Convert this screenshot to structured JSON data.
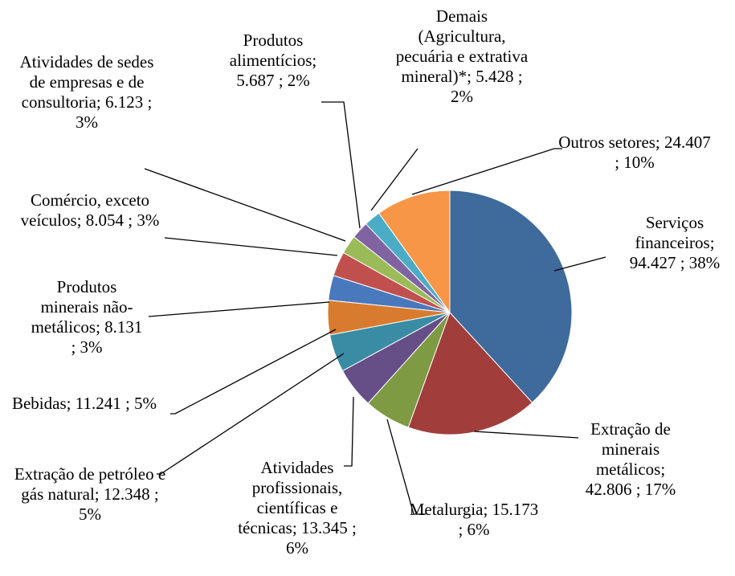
{
  "chart_data": {
    "type": "pie",
    "categories": [
      "Serviços financeiros;",
      "Extração de minerais metálicos;",
      "Metalurgia;",
      "Atividades profissionais, científicas e técnicas;",
      "Extração de petróleo e gás natural;",
      "Bebidas;",
      "Produtos minerais não-metálicos;",
      "Comércio, exceto veículos;",
      "Atividades de sedes de empresas e de consultoria;",
      "Produtos alimentícios;",
      "Demais (Agricultura, pecuária e extrativa mineral)*;",
      "Outros setores;"
    ],
    "values": [
      94427,
      42806,
      15173,
      13345,
      12348,
      11241,
      8131,
      8054,
      6123,
      5687,
      5428,
      24407
    ],
    "value_labels": [
      "94.427 ; 38%",
      "42.806 ; 17%",
      "15.173 ; 6%",
      "13.345 ; 6%",
      "12.348 ; 5%",
      "11.241 ; 5%",
      "8.131 ; 3%",
      "8.054 ; 3%",
      "6.123 ; 3%",
      "5.687 ; 2%",
      "5.428 ; 2%",
      "24.407 ; 10%"
    ],
    "colors": [
      "#3E6A9C",
      "#A13E3B",
      "#7E9A43",
      "#664F87",
      "#3A8CA4",
      "#D97B2E",
      "#4A78BD",
      "#C0504D",
      "#9BBB59",
      "#8064A2",
      "#4BACC6",
      "#F79646"
    ]
  }
}
